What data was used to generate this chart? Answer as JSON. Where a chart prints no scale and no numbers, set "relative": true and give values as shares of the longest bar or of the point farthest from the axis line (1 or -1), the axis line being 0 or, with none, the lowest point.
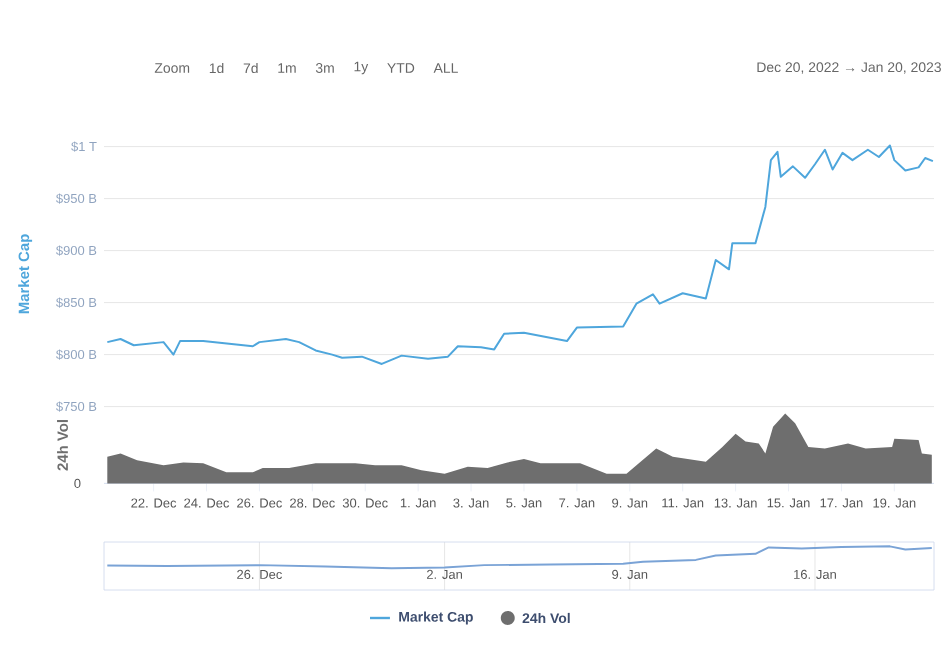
{
  "chart_data": [
    {
      "type": "line",
      "ylabel": "Market Cap",
      "xlim": [
        "2022-12-20T03:00",
        "2023-01-20T12:00"
      ],
      "ylim": [
        750000000000,
        1005000000000
      ],
      "yticks": [
        {
          "value": 750000000000,
          "label": "$750 B"
        },
        {
          "value": 800000000000,
          "label": "$800 B"
        },
        {
          "value": 850000000000,
          "label": "$850 B"
        },
        {
          "value": 900000000000,
          "label": "$900 B"
        },
        {
          "value": 950000000000,
          "label": "$950 B"
        },
        {
          "value": 1000000000000,
          "label": "$1 T"
        }
      ],
      "grid": "y",
      "tick_labels": "y",
      "legend": "bottom",
      "annotations": [
        "Zoom",
        "1d",
        "7d",
        "1m",
        "3m",
        "1y",
        "YTD",
        "ALL",
        "Dec 20, 2022 → Jan 20, 2023"
      ],
      "series": [
        {
          "name": "Market Cap",
          "color": "#4ea6dc",
          "x": [
            "2022-12-20T06:00",
            "2022-12-20T18:00",
            "2022-12-21T06:00",
            "2022-12-22T09:00",
            "2022-12-22T18:00",
            "2022-12-23T00:00",
            "2022-12-23T21:00",
            "2022-12-25T18:00",
            "2022-12-26T00:00",
            "2022-12-27T00:00",
            "2022-12-27T12:00",
            "2022-12-28T03:00",
            "2022-12-28T18:00",
            "2022-12-29T03:00",
            "2022-12-29T21:00",
            "2022-12-30T15:00",
            "2022-12-31T09:00",
            "2023-01-01T09:00",
            "2023-01-02T03:00",
            "2023-01-02T12:00",
            "2023-01-03T09:00",
            "2023-01-03T21:00",
            "2023-01-04T06:00",
            "2023-01-05T00:00",
            "2023-01-06T15:00",
            "2023-01-07T00:00",
            "2023-01-08T18:00",
            "2023-01-09T06:00",
            "2023-01-09T21:00",
            "2023-01-10T03:00",
            "2023-01-11T00:00",
            "2023-01-11T21:00",
            "2023-01-12T06:00",
            "2023-01-12T18:00",
            "2023-01-12T21:00",
            "2023-01-13T18:00",
            "2023-01-14T03:00",
            "2023-01-14T08:00",
            "2023-01-14T14:00",
            "2023-01-14T17:00",
            "2023-01-15T04:00",
            "2023-01-15T15:00",
            "2023-01-16T00:00",
            "2023-01-16T09:00",
            "2023-01-16T16:00",
            "2023-01-17T01:00",
            "2023-01-17T10:00",
            "2023-01-18T00:00",
            "2023-01-18T10:00",
            "2023-01-18T20:00",
            "2023-01-19T00:00",
            "2023-01-19T10:00",
            "2023-01-19T22:00",
            "2023-01-20T04:00",
            "2023-01-20T11:00"
          ],
          "values": [
            812000000000,
            815000000000,
            809000000000,
            812000000000,
            800000000000,
            813000000000,
            813000000000,
            808000000000,
            812000000000,
            815000000000,
            812000000000,
            804000000000,
            800000000000,
            797000000000,
            798000000000,
            791000000000,
            799000000000,
            796000000000,
            798000000000,
            808000000000,
            807000000000,
            805000000000,
            820000000000,
            821000000000,
            813000000000,
            826000000000,
            827000000000,
            849000000000,
            858000000000,
            849000000000,
            859000000000,
            854000000000,
            891000000000,
            882000000000,
            907000000000,
            907000000000,
            942000000000,
            987000000000,
            995000000000,
            971000000000,
            981000000000,
            970000000000,
            983000000000,
            997000000000,
            978000000000,
            994000000000,
            987000000000,
            997000000000,
            990000000000,
            1001000000000,
            987000000000,
            977000000000,
            980000000000,
            989000000000,
            986000000000
          ]
        }
      ]
    },
    {
      "type": "area",
      "ylabel": "24h Vol",
      "relative": true,
      "xlim": [
        "2022-12-20T03:00",
        "2023-01-20T12:00"
      ],
      "xticks": [
        {
          "value": "2022-12-22",
          "label": "22. Dec"
        },
        {
          "value": "2022-12-24",
          "label": "24. Dec"
        },
        {
          "value": "2022-12-26",
          "label": "26. Dec"
        },
        {
          "value": "2022-12-28",
          "label": "28. Dec"
        },
        {
          "value": "2022-12-30",
          "label": "30. Dec"
        },
        {
          "value": "2023-01-01",
          "label": "1. Jan"
        },
        {
          "value": "2023-01-03",
          "label": "3. Jan"
        },
        {
          "value": "2023-01-05",
          "label": "5. Jan"
        },
        {
          "value": "2023-01-07",
          "label": "7. Jan"
        },
        {
          "value": "2023-01-09",
          "label": "9. Jan"
        },
        {
          "value": "2023-01-11",
          "label": "11. Jan"
        },
        {
          "value": "2023-01-13",
          "label": "13. Jan"
        },
        {
          "value": "2023-01-15",
          "label": "15. Jan"
        },
        {
          "value": "2023-01-17",
          "label": "17. Jan"
        },
        {
          "value": "2023-01-19",
          "label": "19. Jan"
        }
      ],
      "tick_labels": "x",
      "legend": "bottom",
      "annotations": [
        "0"
      ],
      "series": [
        {
          "name": "24h Vol",
          "color": "#6e6e6e",
          "x": [
            "2022-12-20T06:00",
            "2022-12-20T18:00",
            "2022-12-21T09:00",
            "2022-12-22T09:00",
            "2022-12-23T03:00",
            "2022-12-23T21:00",
            "2022-12-24T18:00",
            "2022-12-25T18:00",
            "2022-12-26T03:00",
            "2022-12-27T03:00",
            "2022-12-28T03:00",
            "2022-12-29T15:00",
            "2022-12-30T09:00",
            "2022-12-31T09:00",
            "2023-01-01T03:00",
            "2023-01-02T00:00",
            "2023-01-02T21:00",
            "2023-01-03T15:00",
            "2023-01-04T09:00",
            "2023-01-05T00:00",
            "2023-01-05T15:00",
            "2023-01-07T03:00",
            "2023-01-08T03:00",
            "2023-01-08T21:00",
            "2023-01-10T00:00",
            "2023-01-10T15:00",
            "2023-01-11T21:00",
            "2023-01-12T12:00",
            "2023-01-13T00:00",
            "2023-01-13T09:00",
            "2023-01-13T21:00",
            "2023-01-14T03:00",
            "2023-01-14T10:00",
            "2023-01-14T21:00",
            "2023-01-15T06:00",
            "2023-01-15T18:00",
            "2023-01-16T09:00",
            "2023-01-17T06:00",
            "2023-01-17T22:00",
            "2023-01-18T22:00",
            "2023-01-19T00:00",
            "2023-01-19T22:00",
            "2023-01-20T01:00",
            "2023-01-20T10:00"
          ],
          "values": [
            0.38,
            0.43,
            0.33,
            0.26,
            0.3,
            0.29,
            0.16,
            0.16,
            0.22,
            0.22,
            0.29,
            0.29,
            0.26,
            0.26,
            0.19,
            0.14,
            0.24,
            0.22,
            0.3,
            0.35,
            0.29,
            0.29,
            0.14,
            0.14,
            0.5,
            0.38,
            0.31,
            0.52,
            0.71,
            0.6,
            0.57,
            0.43,
            0.81,
            1,
            0.86,
            0.52,
            0.5,
            0.57,
            0.5,
            0.52,
            0.64,
            0.62,
            0.43,
            0.41
          ]
        }
      ]
    },
    {
      "type": "line",
      "relative": true,
      "xlim": [
        "2022-12-20T03:00",
        "2023-01-20T12:00"
      ],
      "xticks": [
        {
          "value": "2022-12-26",
          "label": "26. Dec"
        },
        {
          "value": "2023-01-02",
          "label": "2. Jan"
        },
        {
          "value": "2023-01-09",
          "label": "9. Jan"
        },
        {
          "value": "2023-01-16",
          "label": "16. Jan"
        }
      ],
      "grid": "x",
      "tick_labels": "x",
      "series": [
        {
          "color": "#7aa3d6",
          "x": [
            "2022-12-20T06:00",
            "2022-12-22T12:00",
            "2022-12-26T00:00",
            "2022-12-28T12:00",
            "2022-12-31T00:00",
            "2023-01-02T00:00",
            "2023-01-03T12:00",
            "2023-01-06T00:00",
            "2023-01-08T18:00",
            "2023-01-09T12:00",
            "2023-01-11T12:00",
            "2023-01-12T06:00",
            "2023-01-13T18:00",
            "2023-01-14T06:00",
            "2023-01-15T12:00",
            "2023-01-17T00:00",
            "2023-01-18T20:00",
            "2023-01-19T10:00",
            "2023-01-20T10:00"
          ],
          "values": [
            0.12,
            0.1,
            0.14,
            0.08,
            0.0,
            0.03,
            0.14,
            0.17,
            0.2,
            0.3,
            0.38,
            0.58,
            0.66,
            0.95,
            0.9,
            0.97,
            1,
            0.86,
            0.92
          ]
        }
      ]
    }
  ]
}
